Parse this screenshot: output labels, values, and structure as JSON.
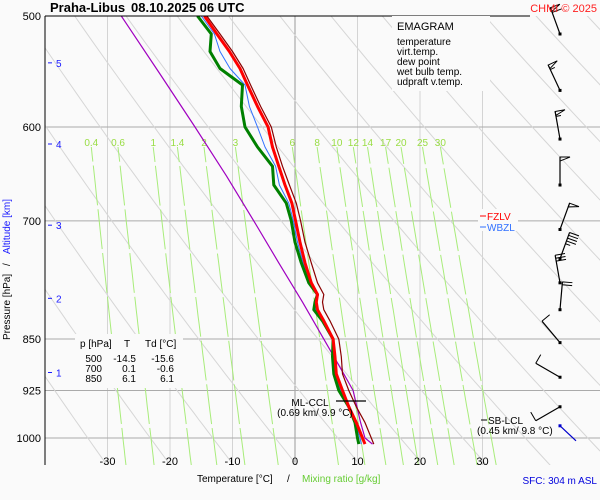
{
  "header": {
    "station": "Praha-Libus",
    "datetime": "08.10.2025 06 UTC",
    "copyright": "CHMI © 2025"
  },
  "legend": {
    "title": "EMAGRAM",
    "items": [
      {
        "label": "temperature",
        "color": "#ff0000"
      },
      {
        "label": "virt.temp.",
        "color": "#8b0000"
      },
      {
        "label": "dew point",
        "color": "#008000"
      },
      {
        "label": "wet bulb temp.",
        "color": "#3070ff"
      },
      {
        "label": "udpraft v.temp.",
        "color": "#a000c0"
      }
    ]
  },
  "levels_table": {
    "headers": [
      "p [hPa]",
      "T",
      "Td [°C]"
    ],
    "rows": [
      [
        "500",
        "-14.5",
        "-15.6"
      ],
      [
        "700",
        "0.1",
        "-0.6"
      ],
      [
        "850",
        "6.1",
        "6.1"
      ]
    ]
  },
  "annotations": {
    "fzlv": {
      "label": "FZLV",
      "color": "#ff0000",
      "pressure": 700
    },
    "wbzl": {
      "label": "WBZL",
      "color": "#3070ff",
      "pressure": 706
    },
    "ml_ccl": {
      "label": "ML-CCL",
      "detail": "(0.69 km/ 9.9 °C)",
      "pressure": 925,
      "temp": 9.9
    },
    "sb_lcl": {
      "label": "SB-LCL",
      "detail": "(0.45 km/ 9.8 °C)",
      "pressure": 952,
      "temp": 9.8
    },
    "sfc": "SFC: 304 m ASL"
  },
  "chart_data": {
    "type": "line",
    "title": "Praha-Libus 08.10.2025 06 UTC",
    "subtitle": "EMAGRAM",
    "xlabel": "Temperature [°C]",
    "xlabel2": "Mixing ratio [g/kg]",
    "ylabel": "Pressure [hPa]",
    "ylabel2": "Altitude [km]",
    "xlim": [
      -35,
      35
    ],
    "ylim": [
      1050,
      500
    ],
    "yscale": "log",
    "x_ticks": [
      -30,
      -20,
      -10,
      0,
      10,
      20,
      30
    ],
    "y_ticks": [
      500,
      600,
      700,
      850,
      925,
      1000
    ],
    "altitude_ticks": [
      {
        "km": 1,
        "p": 898
      },
      {
        "km": 2,
        "p": 795
      },
      {
        "km": 3,
        "p": 705
      },
      {
        "km": 4,
        "p": 617
      },
      {
        "km": 5,
        "p": 540
      }
    ],
    "mixing_ratio_labels": [
      "0.4",
      "0.6",
      "1",
      "1.4",
      "2",
      "3",
      "6",
      "8",
      "10",
      "12",
      "14",
      "17",
      "20",
      "25",
      "30"
    ],
    "mixing_ratio_values": [
      0.4,
      0.6,
      1,
      1.4,
      2,
      3,
      6,
      8,
      10,
      12,
      14,
      17,
      20,
      25,
      30
    ],
    "series": [
      {
        "name": "temperature",
        "color": "#ff0000",
        "points": [
          [
            1010,
            11.2
          ],
          [
            1000,
            10.8
          ],
          [
            975,
            9.8
          ],
          [
            950,
            8.6
          ],
          [
            925,
            7.6
          ],
          [
            900,
            6.6
          ],
          [
            875,
            6.4
          ],
          [
            850,
            6.1
          ],
          [
            825,
            4.6
          ],
          [
            810,
            3.6
          ],
          [
            800,
            3.4
          ],
          [
            790,
            3.6
          ],
          [
            775,
            2.6
          ],
          [
            750,
            1.6
          ],
          [
            725,
            0.8
          ],
          [
            700,
            0.1
          ],
          [
            680,
            -0.5
          ],
          [
            660,
            -1.6
          ],
          [
            640,
            -2.6
          ],
          [
            620,
            -3.6
          ],
          [
            600,
            -4.3
          ],
          [
            580,
            -6.0
          ],
          [
            560,
            -7.6
          ],
          [
            545,
            -8.8
          ],
          [
            530,
            -10.5
          ],
          [
            515,
            -12.5
          ],
          [
            500,
            -14.5
          ]
        ]
      },
      {
        "name": "virt.temp.",
        "color": "#8b0000",
        "points": [
          [
            1010,
            12.6
          ],
          [
            1000,
            12.2
          ],
          [
            975,
            11.2
          ],
          [
            950,
            9.8
          ],
          [
            925,
            8.6
          ],
          [
            900,
            7.6
          ],
          [
            875,
            7.4
          ],
          [
            850,
            7.0
          ],
          [
            825,
            5.6
          ],
          [
            810,
            4.6
          ],
          [
            800,
            4.4
          ],
          [
            790,
            4.6
          ],
          [
            775,
            3.6
          ],
          [
            750,
            2.6
          ],
          [
            725,
            1.6
          ],
          [
            700,
            0.9
          ],
          [
            680,
            0.2
          ],
          [
            660,
            -0.9
          ],
          [
            640,
            -2.0
          ],
          [
            620,
            -3.0
          ],
          [
            600,
            -3.8
          ],
          [
            580,
            -5.5
          ],
          [
            560,
            -7.1
          ],
          [
            545,
            -8.3
          ],
          [
            530,
            -10.0
          ],
          [
            515,
            -12.0
          ],
          [
            500,
            -14.1
          ]
        ]
      },
      {
        "name": "dew point",
        "color": "#008000",
        "points": [
          [
            1010,
            10.2
          ],
          [
            1000,
            10.0
          ],
          [
            975,
            9.6
          ],
          [
            950,
            8.6
          ],
          [
            925,
            7.0
          ],
          [
            900,
            6.2
          ],
          [
            875,
            6.0
          ],
          [
            850,
            6.1
          ],
          [
            825,
            4.4
          ],
          [
            810,
            3.0
          ],
          [
            800,
            3.2
          ],
          [
            790,
            3.6
          ],
          [
            775,
            2.2
          ],
          [
            750,
            1.0
          ],
          [
            725,
            0.0
          ],
          [
            700,
            -0.6
          ],
          [
            680,
            -1.4
          ],
          [
            660,
            -3.4
          ],
          [
            640,
            -3.6
          ],
          [
            620,
            -6.0
          ],
          [
            600,
            -8.0
          ],
          [
            580,
            -8.6
          ],
          [
            560,
            -8.4
          ],
          [
            545,
            -12.0
          ],
          [
            530,
            -13.6
          ],
          [
            515,
            -13.4
          ],
          [
            500,
            -15.6
          ]
        ]
      },
      {
        "name": "wet bulb temp.",
        "color": "#3070ff",
        "points": [
          [
            1010,
            10.6
          ],
          [
            1000,
            10.4
          ],
          [
            975,
            9.7
          ],
          [
            950,
            8.6
          ],
          [
            925,
            7.3
          ],
          [
            900,
            6.4
          ],
          [
            875,
            6.2
          ],
          [
            850,
            6.1
          ],
          [
            825,
            4.5
          ],
          [
            810,
            3.3
          ],
          [
            800,
            3.3
          ],
          [
            790,
            3.6
          ],
          [
            775,
            2.4
          ],
          [
            750,
            1.3
          ],
          [
            725,
            0.4
          ],
          [
            700,
            -0.25
          ],
          [
            680,
            -1.0
          ],
          [
            660,
            -2.5
          ],
          [
            640,
            -3.1
          ],
          [
            620,
            -4.8
          ],
          [
            600,
            -6.0
          ],
          [
            580,
            -7.3
          ],
          [
            560,
            -8.0
          ],
          [
            545,
            -10.4
          ],
          [
            530,
            -12.0
          ],
          [
            515,
            -12.9
          ],
          [
            500,
            -15.0
          ]
        ]
      },
      {
        "name": "udpraft v.temp.",
        "color": "#a000c0",
        "points": [
          [
            1010,
            12.4
          ],
          [
            1000,
            11.2
          ],
          [
            975,
            10.5
          ],
          [
            950,
            9.9
          ],
          [
            925,
            9.3
          ],
          [
            900,
            7.8
          ],
          [
            850,
            4.6
          ],
          [
            800,
            1.2
          ],
          [
            750,
            -2.6
          ],
          [
            700,
            -6.6
          ],
          [
            650,
            -11.0
          ],
          [
            600,
            -16.0
          ],
          [
            550,
            -21.6
          ],
          [
            500,
            -27.8
          ]
        ]
      }
    ],
    "wind_barbs": [
      {
        "p": 515,
        "dir_deg": 340,
        "speed_kt": 60
      },
      {
        "p": 565,
        "dir_deg": 335,
        "speed_kt": 55
      },
      {
        "p": 612,
        "dir_deg": 350,
        "speed_kt": 55
      },
      {
        "p": 660,
        "dir_deg": 360,
        "speed_kt": 50
      },
      {
        "p": 710,
        "dir_deg": 20,
        "speed_kt": 50
      },
      {
        "p": 745,
        "dir_deg": 20,
        "speed_kt": 45
      },
      {
        "p": 775,
        "dir_deg": 350,
        "speed_kt": 30
      },
      {
        "p": 810,
        "dir_deg": 5,
        "speed_kt": 20
      },
      {
        "p": 855,
        "dir_deg": 320,
        "speed_kt": 10
      },
      {
        "p": 905,
        "dir_deg": 300,
        "speed_kt": 10
      },
      {
        "p": 950,
        "dir_deg": 240,
        "speed_kt": 10
      }
    ],
    "surface_wind": {
      "p": 985,
      "dir_deg": 315,
      "speed_kt": 5,
      "color": "#0000cc"
    },
    "grid": true,
    "legend_position": "top-right"
  },
  "axis_labels": {
    "y_pressure": "Pressure [hPa]",
    "y_sep": "/",
    "y_altitude": "Altitude [km]",
    "x_temp": "Temperature [°C]",
    "x_sep": "/",
    "x_mix": "Mixing ratio [g/kg]"
  }
}
